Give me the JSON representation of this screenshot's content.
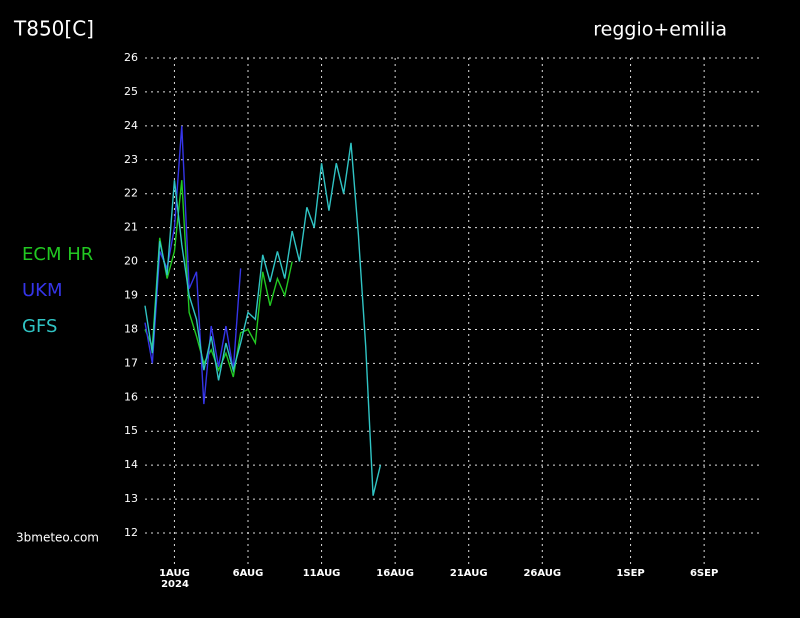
{
  "chart_data": {
    "type": "line",
    "title": "T850[C]",
    "subtitle": "reggio+emilia",
    "source": "3bmeteo.com",
    "x_year_label": "2024",
    "x": [
      -1,
      -0.5,
      0,
      0.5,
      1,
      1.5,
      2,
      2.5,
      3,
      3.5,
      4,
      4.5,
      5,
      5.5,
      6,
      6.5,
      7,
      7.5,
      8,
      8.5,
      9,
      9.5,
      10,
      10.5,
      11,
      11.5,
      12,
      12.5,
      13,
      13.5,
      14,
      14.5,
      15
    ],
    "series": [
      {
        "name": "ECM HR",
        "color": "#22c822",
        "values": [
          18.0,
          17.5,
          20.7,
          19.5,
          20.3,
          22.4,
          18.5,
          17.8,
          17.0,
          17.4,
          16.8,
          17.3,
          16.6,
          17.9,
          18.0,
          17.6,
          19.7,
          18.7,
          19.5,
          19.0,
          20.0,
          null,
          null,
          null,
          null,
          null,
          null,
          null,
          null,
          null,
          null,
          null,
          null
        ]
      },
      {
        "name": "UKM",
        "color": "#3535e8",
        "values": [
          18.2,
          17.0,
          20.3,
          19.8,
          21.0,
          24.0,
          19.2,
          19.7,
          15.8,
          18.1,
          16.9,
          18.1,
          16.8,
          19.8,
          null,
          null,
          null,
          null,
          null,
          null,
          null,
          null,
          null,
          null,
          null,
          null,
          null,
          null,
          null,
          null,
          null,
          null,
          null
        ]
      },
      {
        "name": "GFS",
        "color": "#30c4c4",
        "values": [
          18.7,
          17.3,
          20.6,
          19.6,
          22.4,
          20.5,
          19.0,
          18.3,
          16.8,
          17.8,
          16.5,
          17.6,
          16.8,
          17.6,
          18.5,
          18.3,
          20.2,
          19.4,
          20.3,
          19.5,
          20.9,
          20.0,
          21.6,
          21.0,
          22.9,
          21.5,
          22.9,
          22.0,
          23.5,
          20.8,
          17.5,
          13.1,
          14.0
        ]
      }
    ],
    "xlim": [
      -1,
      41
    ],
    "xticks": [
      {
        "value": 1,
        "label": "1AUG"
      },
      {
        "value": 6,
        "label": "6AUG"
      },
      {
        "value": 11,
        "label": "11AUG"
      },
      {
        "value": 16,
        "label": "16AUG"
      },
      {
        "value": 21,
        "label": "21AUG"
      },
      {
        "value": 26,
        "label": "26AUG"
      },
      {
        "value": 32,
        "label": "1SEP"
      },
      {
        "value": 37,
        "label": "6SEP"
      }
    ],
    "ylim": [
      11.5,
      26
    ],
    "yticks": [
      12,
      13,
      14,
      15,
      16,
      17,
      18,
      19,
      20,
      21,
      22,
      23,
      24,
      25,
      26
    ],
    "grid": true
  }
}
